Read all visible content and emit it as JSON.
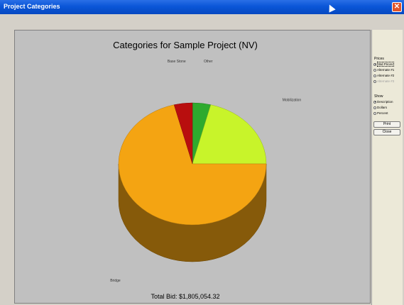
{
  "window": {
    "title": "Project Categories"
  },
  "chart_data": {
    "type": "pie",
    "title": "Categories for Sample Project (NV)",
    "slices": [
      {
        "label": "Other",
        "percent": 4,
        "color": "#2eaa2e"
      },
      {
        "label": "Mobilization",
        "percent": 21,
        "color": "#c8f42a"
      },
      {
        "label": "Bridge",
        "percent": 71,
        "color": "#f4a412"
      },
      {
        "label": "Base Stone",
        "percent": 4,
        "color": "#b80e0e"
      }
    ],
    "footer": "Total Bid: $1,805,054.32"
  },
  "side_panel": {
    "prices_title": "Prices",
    "prices": [
      {
        "label": "Bid Prices",
        "selected": true,
        "disabled": false
      },
      {
        "label": "Alternate #1",
        "selected": false,
        "disabled": false
      },
      {
        "label": "Alternate #2",
        "selected": false,
        "disabled": false
      },
      {
        "label": "Alternate #3",
        "selected": false,
        "disabled": true
      }
    ],
    "show_title": "Show",
    "show": [
      {
        "label": "Description",
        "selected": true,
        "disabled": false
      },
      {
        "label": "Dollars",
        "selected": false,
        "disabled": false
      },
      {
        "label": "Percent",
        "selected": false,
        "disabled": false
      }
    ],
    "print_label": "Print",
    "close_label": "Close"
  }
}
